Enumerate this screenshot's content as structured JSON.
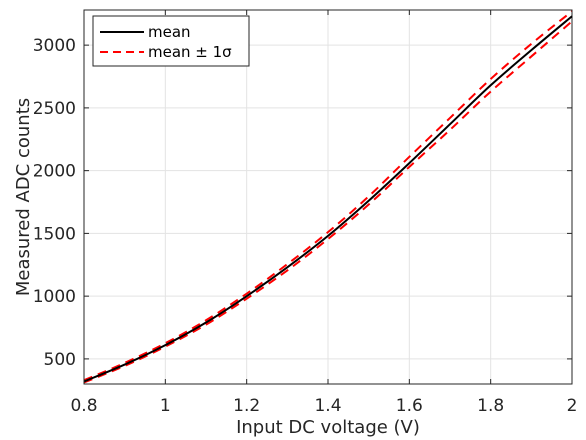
{
  "chart_data": {
    "type": "line",
    "title": "",
    "xlabel": "Input DC voltage (V)",
    "ylabel": "Measured ADC counts",
    "xlim": [
      0.8,
      2.0
    ],
    "ylim": [
      300,
      3280
    ],
    "x_ticks": [
      0.8,
      1.0,
      1.2,
      1.4,
      1.6,
      1.8,
      2.0
    ],
    "x_tick_labels": [
      "0.8",
      "1",
      "1.2",
      "1.4",
      "1.6",
      "1.8",
      "2"
    ],
    "y_ticks": [
      500,
      1000,
      1500,
      2000,
      2500,
      3000
    ],
    "y_tick_labels": [
      "500",
      "1000",
      "1500",
      "2000",
      "2500",
      "3000"
    ],
    "grid": true,
    "legend_position": "top-left",
    "x": [
      0.8,
      0.9,
      1.0,
      1.1,
      1.2,
      1.3,
      1.4,
      1.5,
      1.6,
      1.7,
      1.8,
      1.9,
      2.0
    ],
    "series": [
      {
        "name": "mean",
        "color": "#000000",
        "style": "solid",
        "values": [
          320,
          455,
          610,
          790,
          1000,
          1230,
          1480,
          1760,
          2060,
          2370,
          2680,
          2960,
          3230
        ]
      },
      {
        "name": "mean ± 1σ",
        "color": "#ff0000",
        "style": "dashed",
        "bands": [
          [
            330,
            468,
            625,
            808,
            1020,
            1255,
            1510,
            1795,
            2110,
            2420,
            2730,
            3010,
            3270
          ],
          [
            312,
            444,
            598,
            773,
            980,
            1205,
            1455,
            1730,
            2030,
            2325,
            2630,
            2910,
            3190
          ]
        ]
      }
    ]
  }
}
